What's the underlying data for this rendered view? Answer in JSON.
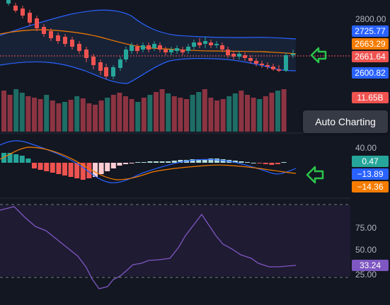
{
  "colors": {
    "background": "#131722",
    "up": "#26a69a",
    "down": "#ef5350",
    "bb": "#2962ff",
    "ma": "#f57c00",
    "rsi": "#7e57c2",
    "arrow": "#2bc44a",
    "vol_up": "#1e6e66",
    "vol_down": "#8c3442"
  },
  "price_axis": {
    "ticks": [
      "2800.00"
    ],
    "labels": {
      "bb_upper": "2725.77",
      "ma": "2663.29",
      "last": "2661.64",
      "bb_lower": "2600.82"
    }
  },
  "volume": {
    "label": "11.65B"
  },
  "macd": {
    "tick": "40.00",
    "histogram_label": "0.47",
    "macd_label": "−13.89",
    "signal_label": "−14.36"
  },
  "rsi": {
    "ticks": [
      "75.00",
      "50.00",
      "25.00"
    ],
    "value_label": "33.24",
    "level": 33.24
  },
  "tooltip": {
    "text": "Auto Charting"
  },
  "icons": {
    "price_arrow": "left-arrow-icon",
    "macd_arrow": "left-arrow-icon"
  }
}
